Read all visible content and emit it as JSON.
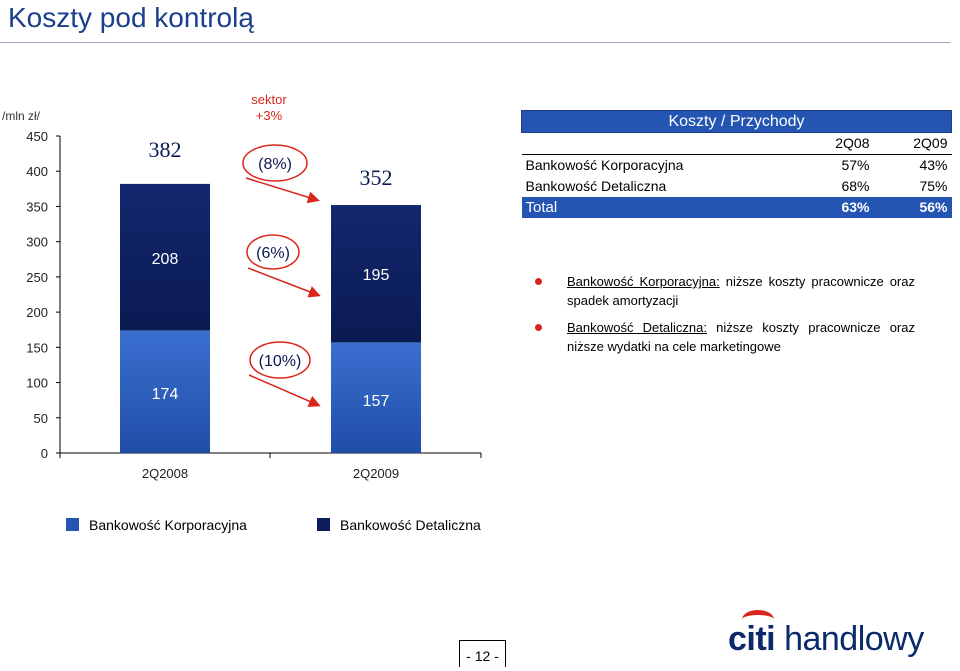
{
  "page": {
    "title": "Koszty pod kontrolą",
    "page_number": "- 12 -"
  },
  "chart_data": {
    "type": "bar",
    "stacked": true,
    "unit_label": "/mln zł/",
    "categories": [
      "2Q2008",
      "2Q2009"
    ],
    "series": [
      {
        "name": "Bankowość Korporacyjna",
        "values": [
          174,
          157
        ],
        "labels": [
          "174",
          "157"
        ],
        "color": "#2455b3"
      },
      {
        "name": "Bankowość Detaliczna",
        "values": [
          208,
          195
        ],
        "labels": [
          "208",
          "195"
        ],
        "color": "#0d1d5c"
      }
    ],
    "totals": [
      382,
      352
    ],
    "total_labels": [
      "382",
      "352"
    ],
    "ylim": [
      0,
      450
    ],
    "yticks": [
      0,
      50,
      100,
      150,
      200,
      250,
      300,
      350,
      400,
      450
    ],
    "ytick_labels": [
      "0",
      "50",
      "100",
      "150",
      "200",
      "250",
      "300",
      "350",
      "400",
      "450"
    ],
    "annotations": {
      "sector_label": "sektor",
      "sector_value": "+3%",
      "total_change": "(8%)",
      "retail_change": "(6%)",
      "corporate_change": "(10%)"
    },
    "legend_position": "bottom"
  },
  "cost_table": {
    "title": "Koszty / Przychody",
    "columns": [
      "2Q08",
      "2Q09"
    ],
    "rows": [
      {
        "label": "Bankowość Korporacyjna",
        "v1": "57%",
        "v2": "43%"
      },
      {
        "label": "Bankowość Detaliczna",
        "v1": "68%",
        "v2": "75%"
      }
    ],
    "total": {
      "label": "Total",
      "v1": "63%",
      "v2": "56%"
    }
  },
  "bullets": [
    {
      "lead": "Bankowość Korporacyjna:",
      "text": " niższe koszty pracownicze oraz spadek amortyzacji"
    },
    {
      "lead": "Bankowość Detaliczna:",
      "text": " niższe koszty pracownicze oraz niższe wydatki na cele marketingowe"
    }
  ],
  "logo": {
    "brand": "citi",
    "name": " handlowy"
  },
  "colors": {
    "corporate": "#2455b3",
    "retail": "#0d1d5c",
    "accent_red": "#d9261c",
    "title_blue": "#1a3f8c"
  }
}
